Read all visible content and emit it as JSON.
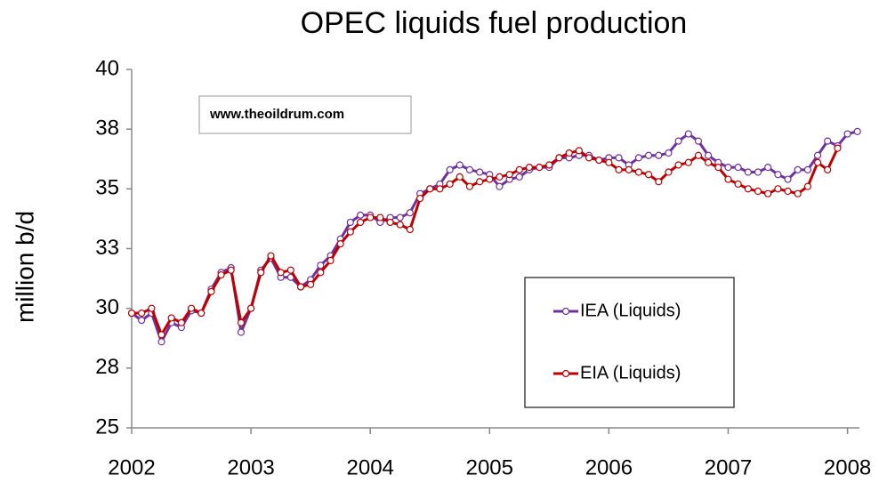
{
  "chart_data": {
    "type": "line",
    "title": "OPEC liquids fuel production",
    "ylabel": "million b/d",
    "annotation": "www.theoildrum.com",
    "x": [
      2002,
      2002.083,
      2002.167,
      2002.25,
      2002.333,
      2002.417,
      2002.5,
      2002.583,
      2002.667,
      2002.75,
      2002.833,
      2002.917,
      2003,
      2003.083,
      2003.167,
      2003.25,
      2003.333,
      2003.417,
      2003.5,
      2003.583,
      2003.667,
      2003.75,
      2003.833,
      2003.917,
      2004,
      2004.083,
      2004.167,
      2004.25,
      2004.333,
      2004.417,
      2004.5,
      2004.583,
      2004.667,
      2004.75,
      2004.833,
      2004.917,
      2005,
      2005.083,
      2005.167,
      2005.25,
      2005.333,
      2005.417,
      2005.5,
      2005.583,
      2005.667,
      2005.75,
      2005.833,
      2005.917,
      2006,
      2006.083,
      2006.167,
      2006.25,
      2006.333,
      2006.417,
      2006.5,
      2006.583,
      2006.667,
      2006.75,
      2006.833,
      2006.917,
      2007,
      2007.083,
      2007.167,
      2007.25,
      2007.333,
      2007.417,
      2007.5,
      2007.583,
      2007.667,
      2007.75,
      2007.833,
      2007.917,
      2008,
      2008.083
    ],
    "series": [
      {
        "name": "IEA (Liquids)",
        "color": "#7030a0",
        "values": [
          29.8,
          29.5,
          29.8,
          28.6,
          29.4,
          29.2,
          29.9,
          29.8,
          30.8,
          31.5,
          31.7,
          29.0,
          30.0,
          31.6,
          32.1,
          31.3,
          31.3,
          30.9,
          31.2,
          31.8,
          32.2,
          32.9,
          33.6,
          33.9,
          33.9,
          33.6,
          33.8,
          33.8,
          34.0,
          34.8,
          35.0,
          35.2,
          35.8,
          36.0,
          35.8,
          35.7,
          35.6,
          35.1,
          35.4,
          35.5,
          35.8,
          35.9,
          35.9,
          36.3,
          36.3,
          36.4,
          36.4,
          36.2,
          36.3,
          36.3,
          36.0,
          36.3,
          36.4,
          36.4,
          36.5,
          37.0,
          37.3,
          37.0,
          36.4,
          36.1,
          35.9,
          35.9,
          35.7,
          35.7,
          35.9,
          35.6,
          35.4,
          35.8,
          35.8,
          36.4,
          37.0,
          36.8,
          37.3,
          37.4
        ]
      },
      {
        "name": "EIA (Liquids)",
        "color": "#c00000",
        "values": [
          29.8,
          29.8,
          30.0,
          28.9,
          29.6,
          29.4,
          30.0,
          29.8,
          30.7,
          31.4,
          31.6,
          29.4,
          30.0,
          31.5,
          32.2,
          31.5,
          31.6,
          30.9,
          31.0,
          31.5,
          32.0,
          32.7,
          33.2,
          33.6,
          33.8,
          33.8,
          33.6,
          33.5,
          33.3,
          34.6,
          35.0,
          35.0,
          35.2,
          35.5,
          35.1,
          35.3,
          35.4,
          35.5,
          35.6,
          35.8,
          35.9,
          35.9,
          36.0,
          36.3,
          36.5,
          36.6,
          36.3,
          36.2,
          36.1,
          35.8,
          35.8,
          35.7,
          35.6,
          35.3,
          35.7,
          36.0,
          36.1,
          36.4,
          36.1,
          35.9,
          35.4,
          35.2,
          35.0,
          34.9,
          34.8,
          35.0,
          34.9,
          34.8,
          35.1,
          36.1,
          35.8,
          36.7,
          null,
          null
        ]
      }
    ],
    "xlim": [
      2002,
      2008.1
    ],
    "xticks": [
      2002,
      2003,
      2004,
      2005,
      2006,
      2007,
      2008
    ],
    "ylim": [
      25,
      40
    ],
    "yticks": [
      {
        "value": 25,
        "label": "25"
      },
      {
        "value": 27.5,
        "label": "28"
      },
      {
        "value": 30,
        "label": "30"
      },
      {
        "value": 32.5,
        "label": "33"
      },
      {
        "value": 35,
        "label": "35"
      },
      {
        "value": 37.5,
        "label": "38"
      },
      {
        "value": 40,
        "label": "40"
      }
    ],
    "grid": false
  }
}
